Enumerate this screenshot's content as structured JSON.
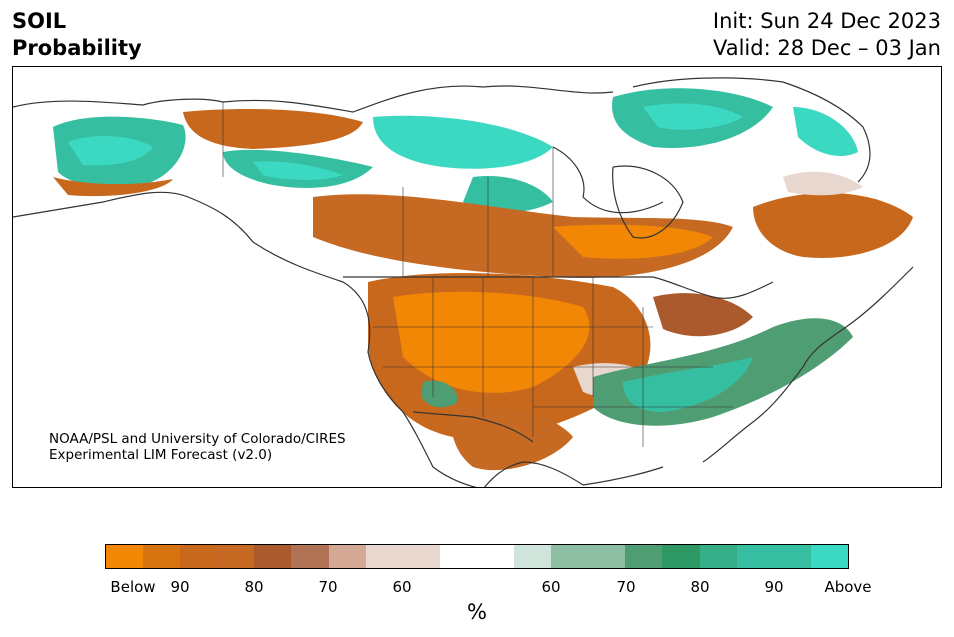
{
  "header": {
    "title_line1": "SOIL",
    "title_line2": "Probability",
    "init": "Init: Sun 24 Dec 2023",
    "valid": "Valid: 28 Dec – 03 Jan"
  },
  "credit": {
    "line1": "NOAA/PSL and University of Colorado/CIRES",
    "line2": "Experimental LIM Forecast (v2.0)"
  },
  "colorbar": {
    "colors": [
      "#f28705",
      "#d6730f",
      "#c8681d",
      "#c66a23",
      "#aa5a2c",
      "#b07255",
      "#d3a895",
      "#e8d7cf",
      "#e8d7cf",
      "#ffffff",
      "#ffffff",
      "#cfe4db",
      "#8ebfa5",
      "#8ebfa5",
      "#4f9d72",
      "#2e9965",
      "#35ad86",
      "#36bea0",
      "#36bea0",
      "#3cd9c2"
    ],
    "ticks": [
      "Below",
      "90",
      "80",
      "70",
      "60",
      "60",
      "70",
      "80",
      "90",
      "Above"
    ],
    "unit": "%"
  },
  "palette": {
    "dry_strong": "#f28705",
    "dry_mid": "#c8681d",
    "dry_light": "#e8d7cf",
    "wet_light": "#cfe4db",
    "wet_mid": "#4f9d72",
    "wet_strong": "#36bea0",
    "wet_max": "#3cd9c2",
    "coast": "#333333"
  }
}
